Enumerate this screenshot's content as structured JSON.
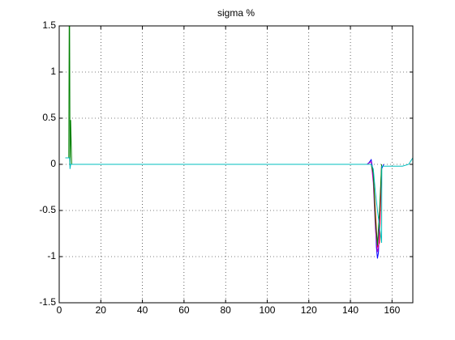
{
  "chart_data": {
    "type": "line",
    "title": "sigma %",
    "xlim": [
      0,
      170
    ],
    "xticks": [
      0,
      20,
      40,
      60,
      80,
      100,
      120,
      140,
      160
    ],
    "ylim": [
      -1.5,
      1.5
    ],
    "yticks": [
      -1.5,
      -1,
      -0.5,
      0,
      0.5,
      1,
      1.5
    ],
    "grid": true,
    "series": [
      {
        "color": "#0000ff",
        "x": [
          5,
          6,
          100,
          148,
          149,
          150,
          150.5,
          151,
          152,
          152.5,
          153,
          153.5,
          154,
          155,
          156
        ],
        "values": [
          0,
          0,
          0,
          0,
          0.02,
          0.05,
          -0.02,
          -0.15,
          -0.6,
          -0.9,
          -1.02,
          -0.95,
          -0.6,
          -0.05,
          0
        ]
      },
      {
        "color": "#ff0000",
        "x": [
          6,
          148,
          150,
          151,
          152,
          153,
          154,
          155
        ],
        "values": [
          0,
          0,
          0,
          -0.1,
          -0.5,
          -0.9,
          -0.85,
          -0.02
        ]
      },
      {
        "color": "#bf00bf",
        "x": [
          6,
          148,
          150,
          151,
          152,
          153,
          153.5,
          154,
          155
        ],
        "values": [
          0,
          0,
          0.03,
          -0.2,
          -0.7,
          -0.95,
          -0.9,
          -0.6,
          0
        ]
      },
      {
        "color": "#008000",
        "x": [
          3,
          4.6,
          4.8,
          5,
          5.2,
          5.5,
          6,
          148,
          150,
          151,
          152,
          153,
          154,
          155
        ],
        "values": [
          0.07,
          0.07,
          1.5,
          1.5,
          0,
          0.48,
          0,
          0,
          0,
          -0.1,
          -0.6,
          -0.88,
          -0.5,
          0
        ]
      },
      {
        "color": "#00bfbf",
        "x": [
          3,
          5,
          5.2,
          5.5,
          6,
          148,
          150,
          151,
          152,
          153,
          155,
          155.1,
          160,
          165,
          168,
          170
        ],
        "values": [
          0.07,
          0.07,
          -0.05,
          0,
          0,
          0,
          0,
          -0.05,
          -0.3,
          -0.5,
          -0.85,
          -0.02,
          -0.02,
          -0.02,
          0,
          0.07
        ]
      }
    ]
  }
}
